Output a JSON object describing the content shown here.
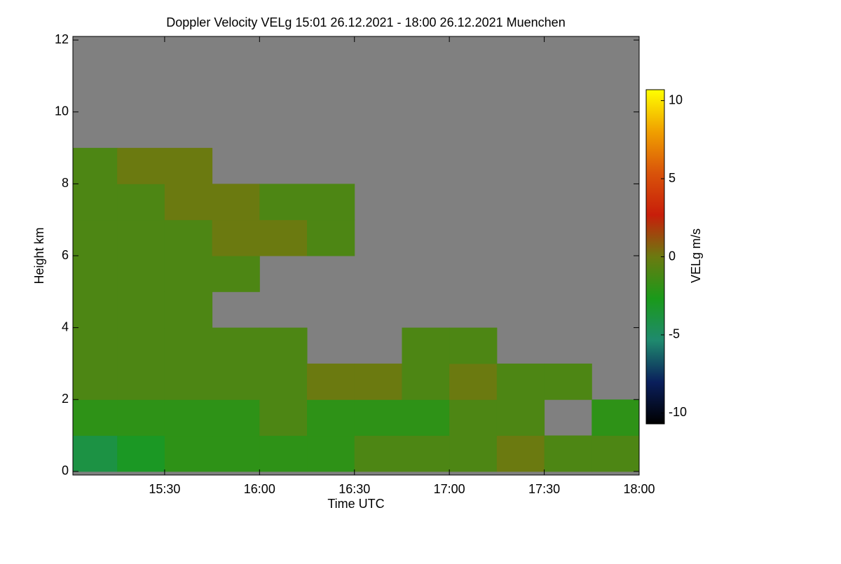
{
  "chart_data": {
    "type": "heatmap",
    "title": "Doppler Velocity VELg   15:01 26.12.2021 - 18:00 26.12.2021 Muenchen",
    "x_label": "Time UTC",
    "y_label": "Height km",
    "colorbar_label": "VELg m/s",
    "xlim": [
      15.0167,
      18.0
    ],
    "xticks": [
      {
        "value": 15.5,
        "label": "15:30"
      },
      {
        "value": 16.0,
        "label": "16:00"
      },
      {
        "value": 16.5,
        "label": "16:30"
      },
      {
        "value": 17.0,
        "label": "17:00"
      },
      {
        "value": 17.5,
        "label": "17:30"
      },
      {
        "value": 18.0,
        "label": "18:00"
      }
    ],
    "ylim": [
      -0.1,
      12.1
    ],
    "yticks": [
      0,
      2,
      4,
      6,
      8,
      10,
      12
    ],
    "clim": [
      -10.7,
      10.7
    ],
    "cticks": [
      -10,
      -5,
      0,
      5,
      10
    ],
    "colormap": [
      "#000000",
      "#0a1f5c",
      "#1f8a6e",
      "#1a9a1a",
      "#6b7a10",
      "#c81e0a",
      "#d9530a",
      "#f0a000",
      "#ffff00"
    ],
    "background": "#808080",
    "x_edges": [
      15.0,
      15.25,
      15.5,
      15.75,
      16.0,
      16.25,
      16.5,
      16.75,
      17.0,
      17.25,
      17.5,
      17.75,
      18.0
    ],
    "y_edges": [
      0,
      1,
      2,
      3,
      4,
      5,
      6,
      7,
      8,
      9
    ],
    "values": [
      [
        -4,
        -3,
        -2,
        -2,
        -2,
        -2,
        -1,
        -1,
        -1,
        0,
        -1,
        -1
      ],
      [
        -2,
        -2,
        -2,
        -2,
        -1,
        -2,
        -2,
        -2,
        -1,
        -1,
        null,
        -2
      ],
      [
        -1,
        -1,
        -1,
        -1,
        -1,
        0,
        0,
        -1,
        0,
        -1,
        -1,
        null
      ],
      [
        -1,
        -1,
        -1,
        -1,
        -1,
        null,
        null,
        -1,
        -1,
        null,
        null,
        null
      ],
      [
        -1,
        -1,
        -1,
        null,
        null,
        null,
        null,
        null,
        null,
        null,
        null,
        null
      ],
      [
        -1,
        -1,
        -1,
        -1,
        null,
        null,
        null,
        null,
        null,
        null,
        null,
        null
      ],
      [
        -1,
        -1,
        -1,
        0,
        0,
        -1,
        null,
        null,
        null,
        null,
        null,
        null
      ],
      [
        -1,
        -1,
        0,
        0,
        -1,
        -1,
        null,
        null,
        null,
        null,
        null,
        null
      ],
      [
        -1,
        0,
        0,
        null,
        null,
        null,
        null,
        null,
        null,
        null,
        null,
        null
      ]
    ]
  }
}
